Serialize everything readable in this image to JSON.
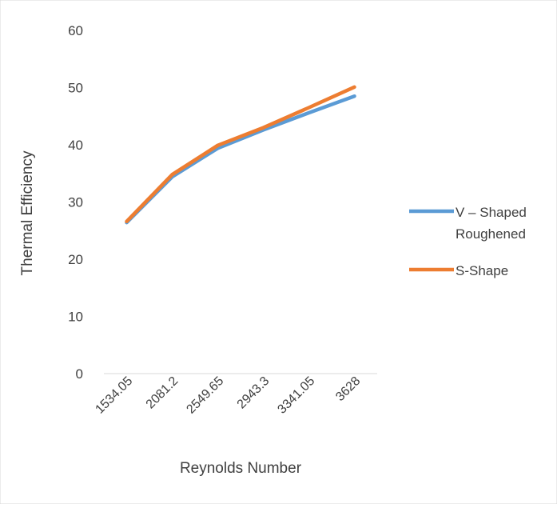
{
  "chart_data": {
    "type": "line",
    "title": "",
    "xlabel": "Reynolds Number",
    "ylabel": "Thermal Efficiency",
    "categories": [
      "1534.05",
      "2081.2",
      "2549.65",
      "2943.3",
      "3341.05",
      "3628"
    ],
    "ylim": [
      0,
      60
    ],
    "y_ticks": [
      "0",
      "10",
      "20",
      "30",
      "40",
      "50",
      "60"
    ],
    "grid": false,
    "legend_position": "right",
    "series": [
      {
        "name": "V – Shaped Roughened",
        "name_lines": [
          "V – Shaped",
          "Roughened"
        ],
        "color": "#5B9BD5",
        "values": [
          26.4,
          34.4,
          39.4,
          42.6,
          45.6,
          48.5
        ]
      },
      {
        "name": "S-Shape",
        "name_lines": [
          "S-Shape"
        ],
        "color": "#ED7D31",
        "values": [
          26.6,
          34.8,
          39.9,
          43.0,
          46.5,
          50.1
        ]
      }
    ]
  }
}
